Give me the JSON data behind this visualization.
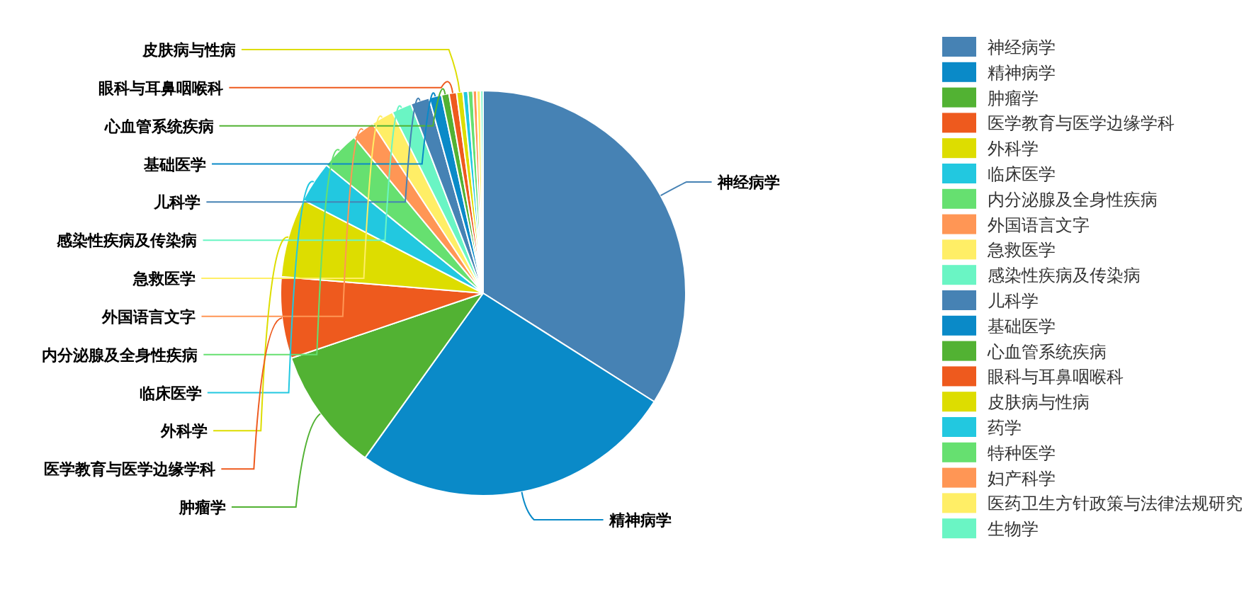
{
  "chart_data": {
    "type": "pie",
    "categories": [
      "神经病学",
      "精神病学",
      "肿瘤学",
      "医学教育与医学边缘学科",
      "外科学",
      "临床医学",
      "内分泌腺及全身性疾病",
      "外国语言文字",
      "急救医学",
      "感染性疾病及传染病",
      "儿科学",
      "基础医学",
      "心血管系统疾病",
      "眼科与耳鼻咽喉科",
      "皮肤病与性病",
      "药学",
      "特种医学",
      "妇产科学",
      "医药卫生方针政策与法律法规研究",
      "生物学"
    ],
    "values": [
      34.0,
      25.9,
      9.9,
      6.5,
      6.3,
      3.3,
      3.1,
      1.8,
      1.8,
      1.6,
      1.5,
      1.0,
      0.6,
      0.6,
      0.5,
      0.4,
      0.4,
      0.3,
      0.3,
      0.2
    ],
    "colors": [
      "#4682b4",
      "#0a8ac8",
      "#52b233",
      "#ee5a1e",
      "#dddd00",
      "#22c8e0",
      "#66e070",
      "#ff9655",
      "#ffee66",
      "#6af5c4",
      "#4682b4",
      "#0a8ac8",
      "#52b233",
      "#ee5a1e",
      "#dddd00",
      "#22c8e0",
      "#66e070",
      "#ff9655",
      "#ffee66",
      "#6af5c4"
    ],
    "legend": "right"
  }
}
